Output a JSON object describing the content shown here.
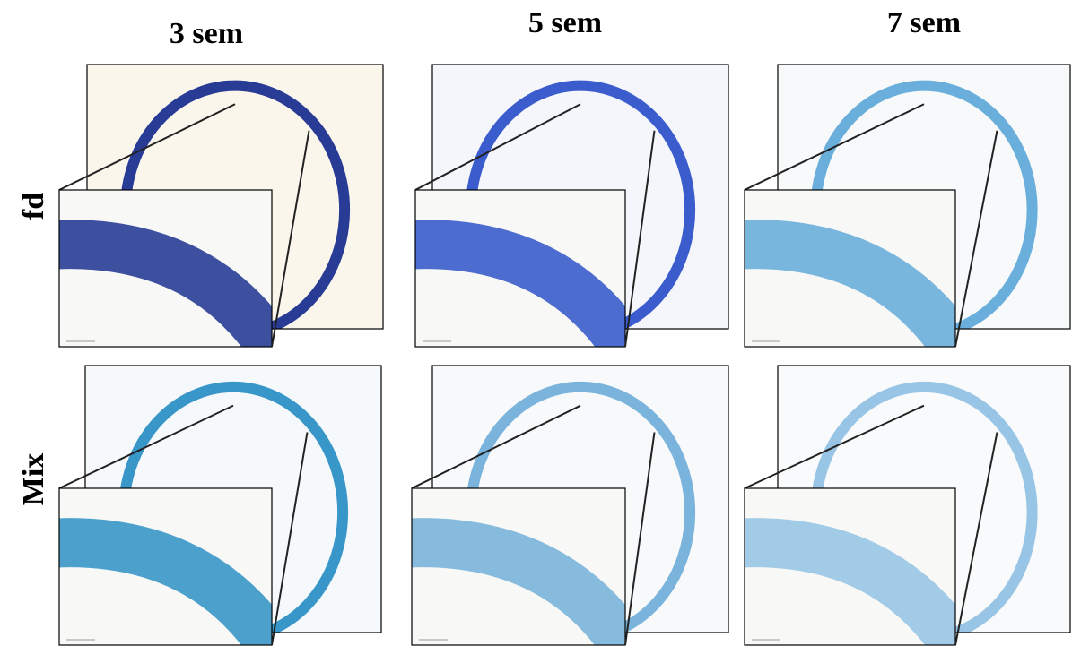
{
  "columns": [
    "3 sem",
    "5 sem",
    "7 sem"
  ],
  "rows": [
    "fd",
    "Mix"
  ]
}
